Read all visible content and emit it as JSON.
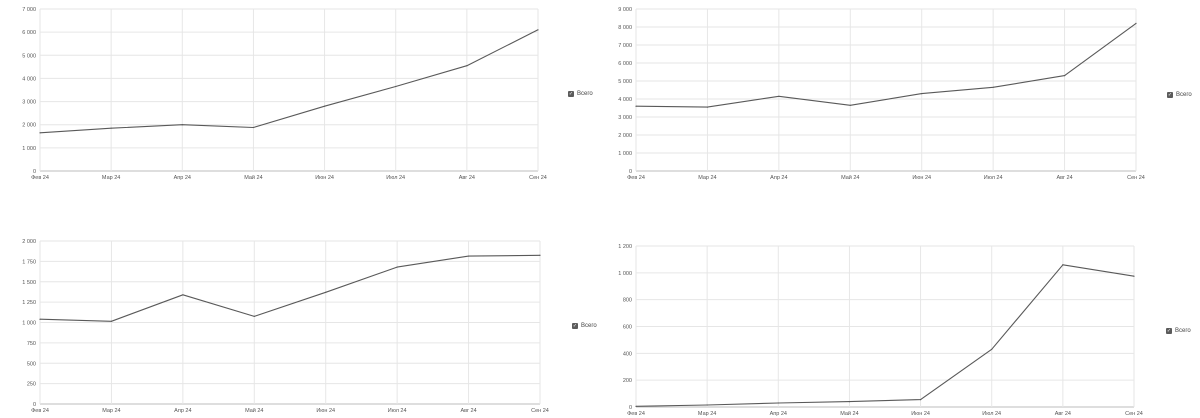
{
  "legend_label": "Всего",
  "colors": {
    "series": "#595959",
    "grid": "#e6e6e6"
  },
  "chart_data": [
    {
      "type": "line",
      "categories": [
        "Фев 24",
        "Мар 24",
        "Апр 24",
        "Май 24",
        "Июн 24",
        "Июл 24",
        "Авг 24",
        "Сен 24"
      ],
      "series": [
        {
          "name": "Всего",
          "values": [
            1650,
            1850,
            2000,
            1880,
            2800,
            3650,
            4550,
            6100
          ]
        }
      ],
      "yticks": [
        0,
        1000,
        2000,
        3000,
        4000,
        5000,
        6000,
        7000
      ],
      "ytick_labels": [
        "0",
        "1 000",
        "2 000",
        "3 000",
        "4 000",
        "5 000",
        "6 000",
        "7 000"
      ],
      "ylim": [
        0,
        7000
      ],
      "grid": true,
      "legend": "right"
    },
    {
      "type": "line",
      "categories": [
        "Фев 24",
        "Мар 24",
        "Апр 24",
        "Май 24",
        "Июн 24",
        "Июл 24",
        "Авг 24",
        "Сен 24"
      ],
      "series": [
        {
          "name": "Всего",
          "values": [
            3600,
            3550,
            4150,
            3650,
            4300,
            4650,
            5300,
            8200
          ]
        }
      ],
      "yticks": [
        0,
        1000,
        2000,
        3000,
        4000,
        5000,
        6000,
        7000,
        8000,
        9000
      ],
      "ytick_labels": [
        "0",
        "1 000",
        "2 000",
        "3 000",
        "4 000",
        "5 000",
        "6 000",
        "7 000",
        "8 000",
        "9 000"
      ],
      "ylim": [
        0,
        9000
      ],
      "grid": true,
      "legend": "right"
    },
    {
      "type": "line",
      "categories": [
        "Фев 24",
        "Мар 24",
        "Апр 24",
        "Май 24",
        "Июн 24",
        "Июл 24",
        "Авг 24",
        "Сен 24"
      ],
      "series": [
        {
          "name": "Всего",
          "values": [
            1040,
            1015,
            1340,
            1075,
            1370,
            1680,
            1815,
            1825
          ]
        }
      ],
      "yticks": [
        0,
        250,
        500,
        750,
        1000,
        1250,
        1500,
        1750,
        2000
      ],
      "ytick_labels": [
        "0",
        "250",
        "500",
        "750",
        "1 000",
        "1 250",
        "1 500",
        "1 750",
        "2 000"
      ],
      "ylim": [
        0,
        2000
      ],
      "grid": true,
      "legend": "right"
    },
    {
      "type": "line",
      "categories": [
        "Фев 24",
        "Мар 24",
        "Апр 24",
        "Май 24",
        "Июн 24",
        "Июл 24",
        "Авг 24",
        "Сен 24"
      ],
      "series": [
        {
          "name": "Всего",
          "values": [
            5,
            15,
            30,
            40,
            55,
            430,
            1060,
            975
          ]
        }
      ],
      "yticks": [
        0,
        200,
        400,
        600,
        800,
        1000,
        1200
      ],
      "ytick_labels": [
        "0",
        "200",
        "400",
        "600",
        "800",
        "1 000",
        "1 200"
      ],
      "ylim": [
        0,
        1200
      ],
      "grid": true,
      "legend": "right"
    }
  ]
}
